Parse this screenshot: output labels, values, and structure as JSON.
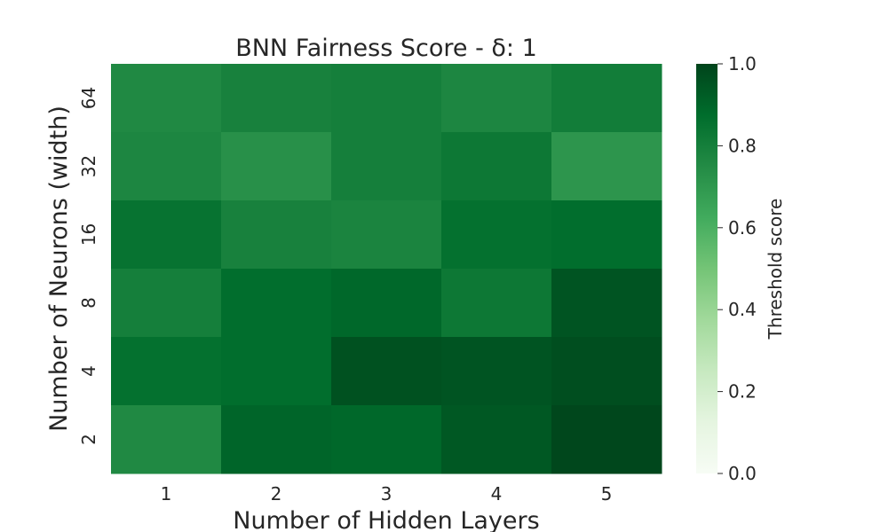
{
  "chart_data": {
    "type": "heatmap",
    "title": "BNN Fairness Score - δ: 1",
    "xlabel": "Number of Hidden Layers",
    "ylabel": "Number of Neurons (width)",
    "x_categories": [
      "1",
      "2",
      "3",
      "4",
      "5"
    ],
    "y_categories": [
      "64",
      "32",
      "16",
      "8",
      "4",
      "2"
    ],
    "values": [
      [
        0.76,
        0.79,
        0.8,
        0.77,
        0.81
      ],
      [
        0.77,
        0.73,
        0.8,
        0.83,
        0.71
      ],
      [
        0.85,
        0.79,
        0.78,
        0.86,
        0.87
      ],
      [
        0.8,
        0.87,
        0.89,
        0.83,
        0.95
      ],
      [
        0.86,
        0.87,
        0.96,
        0.95,
        0.97
      ],
      [
        0.76,
        0.9,
        0.89,
        0.94,
        0.99
      ]
    ],
    "colorbar": {
      "label": "Threshold score",
      "range": [
        0.0,
        1.0
      ],
      "ticks": [
        "0.0",
        "0.2",
        "0.4",
        "0.6",
        "0.8",
        "1.0"
      ],
      "colormap": "Greens"
    },
    "grid": false
  }
}
